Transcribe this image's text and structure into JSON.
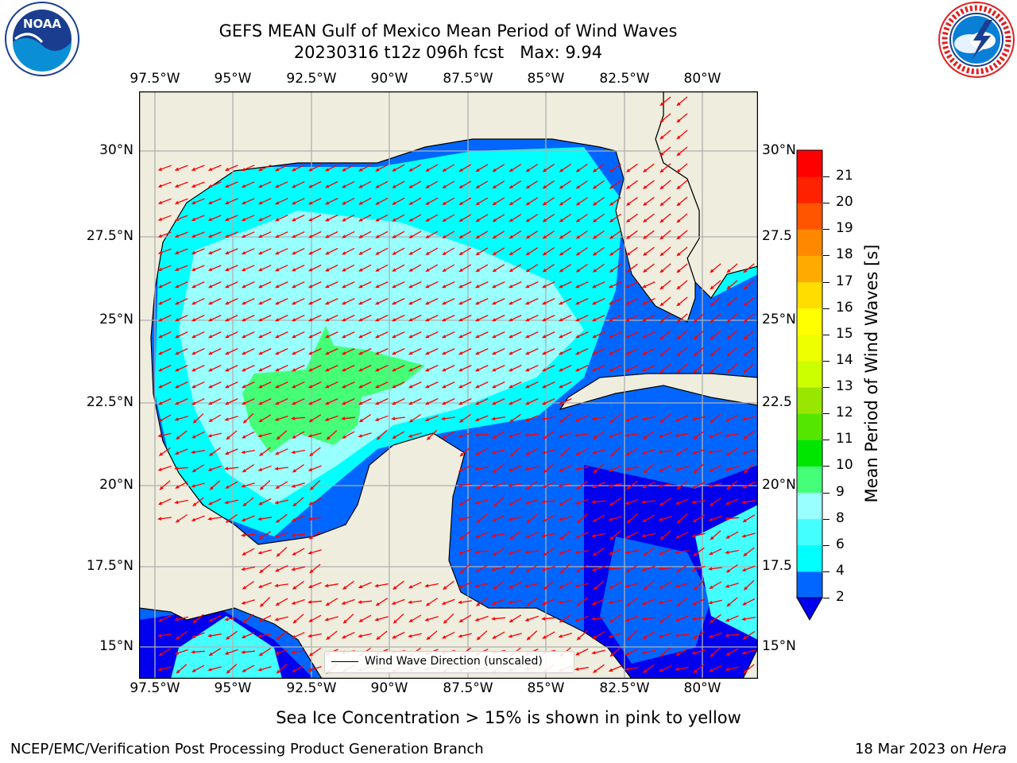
{
  "title": {
    "line1": "GEFS MEAN Gulf of Mexico Mean Period of Wind Waves",
    "line2": "20230316 t12z 096h fcst   Max: 9.94"
  },
  "logos": {
    "left": {
      "icon": "noaa-logo",
      "text": "NOAA",
      "ring_text": "NATIONAL OCEANIC AND ATMOSPHERIC ADMINISTRATION · U.S. DEPARTMENT OF COMMERCE"
    },
    "right": {
      "icon": "nws-logo",
      "ring_text": "NATIONAL WEATHER SERVICE"
    }
  },
  "map": {
    "lon_ticks": [
      "97.5°W",
      "95°W",
      "92.5°W",
      "90°W",
      "87.5°W",
      "85°W",
      "82.5°W",
      "80°W"
    ],
    "lat_ticks_left": [
      "30°N",
      "27.5°N",
      "25°N",
      "22.5°N",
      "20°N",
      "17.5°N",
      "15°N"
    ],
    "lat_ticks_right": [
      "30°N",
      "27.5",
      "25°N",
      "22.5",
      "20°N",
      "17.5",
      "15°N"
    ],
    "lon_range": [
      -98,
      -78.25
    ],
    "lat_range": [
      14,
      32
    ],
    "grid": true,
    "legend": {
      "label": "Wind Wave Direction (unscaled)",
      "placement": "bottom-right"
    }
  },
  "colorbar": {
    "label": "Mean Period of Wind Waves [s]",
    "ticks": [
      "2",
      "4",
      "6",
      "8",
      "9",
      "10",
      "11",
      "12",
      "13",
      "14",
      "15",
      "16",
      "17",
      "18",
      "19",
      "20",
      "21"
    ],
    "bounds": [
      2,
      4,
      6,
      8,
      9,
      10,
      11,
      12,
      13,
      14,
      15,
      16,
      17,
      18,
      19,
      20,
      21
    ],
    "colors": [
      "#0066ff",
      "#00ffff",
      "#44ffff",
      "#99ffff",
      "#44ff77",
      "#00e600",
      "#55e600",
      "#99e600",
      "#ccff00",
      "#eeff00",
      "#ffff00",
      "#ffdd00",
      "#ffaa00",
      "#ff8800",
      "#ff5500",
      "#ff2200",
      "#ff0000"
    ],
    "under_color": "#0000ee",
    "extend": "min"
  },
  "subtitle": "Sea Ice Concentration > 15% is shown in pink to yellow",
  "footer": {
    "left": "NCEP/EMC/Verification Post Processing Product Generation Branch",
    "right_prefix": "18 Mar 2023 on ",
    "right_host": "Hera"
  }
}
